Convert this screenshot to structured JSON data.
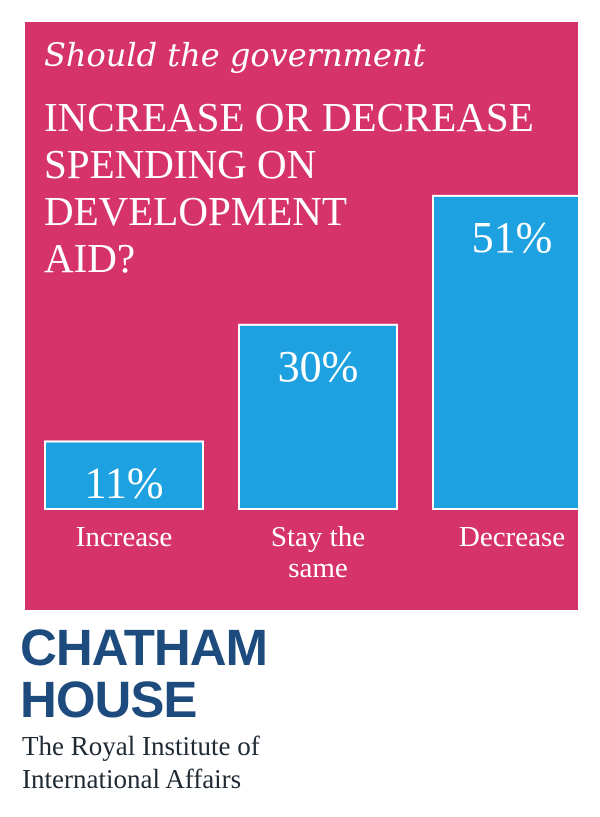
{
  "colors": {
    "card_background": "#d6336a",
    "bar": "#1da1e0",
    "bar_border": "#ffffff",
    "text_on_card": "#ffffff",
    "brand": "#1d4b7d",
    "tagline": "#1f2a35"
  },
  "chart_data": {
    "type": "bar",
    "subtitle": "Should the government",
    "title_lines": [
      "INCREASE OR DECREASE",
      "SPENDING ON",
      "DEVELOPMENT",
      "AID?"
    ],
    "categories": [
      "Increase",
      "Stay the same",
      "Decrease"
    ],
    "category_label_lines": [
      [
        "Increase"
      ],
      [
        "Stay the",
        "same"
      ],
      [
        "Decrease"
      ]
    ],
    "values": [
      11,
      30,
      51
    ],
    "value_labels": [
      "11%",
      "30%",
      "51%"
    ],
    "unit": "%",
    "ylim": [
      0,
      56
    ],
    "grid": false,
    "legend": "none"
  },
  "footer": {
    "brand_lines": [
      "CHATHAM",
      "HOUSE"
    ],
    "tagline_lines": [
      "The Royal Institute of",
      "International Affairs"
    ]
  }
}
